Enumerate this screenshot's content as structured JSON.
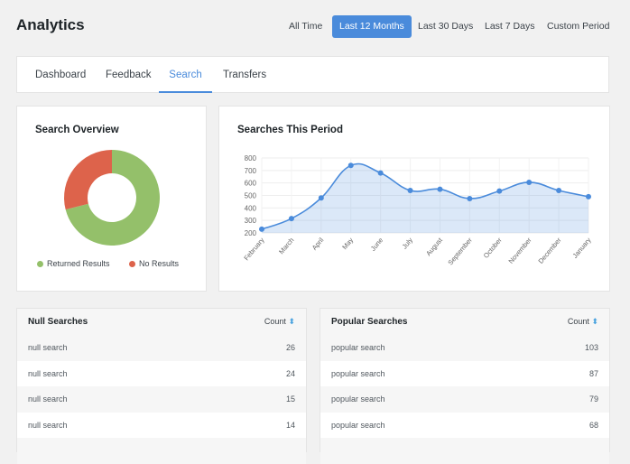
{
  "header": {
    "title": "Analytics",
    "periods": [
      "All Time",
      "Last 12 Months",
      "Last 30 Days",
      "Last 7 Days",
      "Custom Period"
    ],
    "active_period": "Last 12 Months"
  },
  "nav": {
    "tabs": [
      "Dashboard",
      "Feedback",
      "Search",
      "Transfers"
    ],
    "active": "Search"
  },
  "overview": {
    "title": "Search Overview",
    "legend": [
      "Returned Results",
      "No Results"
    ],
    "colors": {
      "returned": "#94c06a",
      "none": "#dd634b"
    },
    "chart_data": {
      "type": "pie",
      "donut": true,
      "labels": [
        "Returned Results",
        "No Results"
      ],
      "values": [
        71,
        29
      ]
    }
  },
  "period_chart": {
    "title": "Searches This Period",
    "chart_data": {
      "type": "line",
      "area": true,
      "smooth": true,
      "color": "#4a8bdb",
      "categories": [
        "February",
        "March",
        "April",
        "May",
        "June",
        "July",
        "August",
        "September",
        "October",
        "November",
        "December",
        "January"
      ],
      "values": [
        230,
        315,
        480,
        740,
        680,
        540,
        550,
        475,
        535,
        605,
        540,
        490
      ],
      "ylim": [
        200,
        800
      ],
      "yticks": [
        200,
        300,
        400,
        500,
        600,
        700,
        800
      ],
      "grid": true
    }
  },
  "null_searches": {
    "title": "Null Searches",
    "count_label": "Count",
    "rows": [
      {
        "term": "null search",
        "count": "26"
      },
      {
        "term": "null search",
        "count": "24"
      },
      {
        "term": "null search",
        "count": "15"
      },
      {
        "term": "null search",
        "count": "14"
      }
    ]
  },
  "popular_searches": {
    "title": "Popular Searches",
    "count_label": "Count",
    "rows": [
      {
        "term": "popular search",
        "count": "103"
      },
      {
        "term": "popular search",
        "count": "87"
      },
      {
        "term": "popular search",
        "count": "79"
      },
      {
        "term": "popular search",
        "count": "68"
      }
    ]
  }
}
